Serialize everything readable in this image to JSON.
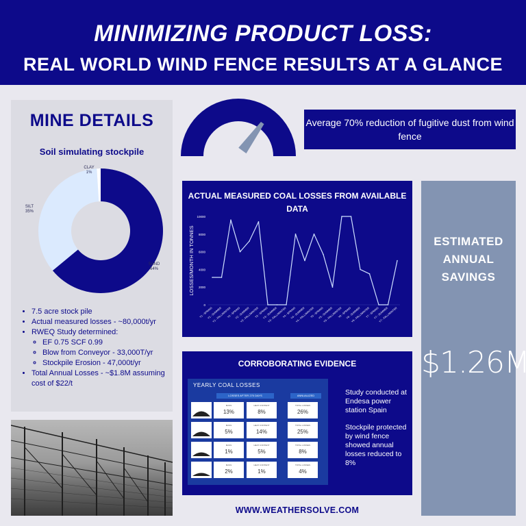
{
  "header": {
    "title_line1": "MINIMIZING PRODUCT LOSS:",
    "title_line2": "REAL WORLD WIND FENCE RESULTS AT A GLANCE"
  },
  "mine_details": {
    "title": "MINE DETAILS",
    "pie": {
      "title": "Soil simulating stockpile",
      "slices": [
        {
          "name": "SAND",
          "pct": "64%",
          "value": 64,
          "color": "#0d0a8a"
        },
        {
          "name": "SILT",
          "pct": "35%",
          "value": 35,
          "color": "#dbeafe"
        },
        {
          "name": "CLAY",
          "pct": "1%",
          "value": 1,
          "color": "#ffffff"
        }
      ]
    },
    "bullets": [
      "7.5 acre stock pile",
      "Actual measured losses - ~80,000t/yr",
      "RWEQ Study determined:"
    ],
    "sub_bullets": [
      "EF 0.75  SCF 0.99",
      "Blow from Conveyor - 33,000T/yr",
      "Stockpile Erosion - 47,000t/yr"
    ],
    "last_bullet": "Total Annual Losses - ~$1.8M assuming cost of $22/t"
  },
  "gauge": {
    "reduction_percent": 70
  },
  "reduction_text": "Average 70% reduction of fugitive dust from wind fence",
  "chart_data": {
    "type": "line",
    "title": "ACTUAL MEASURED COAL LOSSES FROM AVAILABLE DATA",
    "ylabel": "LOSSES/MONTH IN TONNES",
    "xlabel": "",
    "ylim": [
      0,
      10000
    ],
    "yticks": [
      0,
      2000,
      4000,
      6000,
      8000,
      10000
    ],
    "categories": [
      "Y1 - SPRING",
      "Y1 - SUMMER",
      "Y1 - FALL/WINTER",
      "Y2 - SPRING",
      "Y2 - SUMMER",
      "Y2 - FALL/WINTER",
      "Y3 - SPRING",
      "Y3 - SUMMER",
      "Y3 - FALL/WINTER",
      "Y4 - SPRING",
      "Y4 - SUMMER",
      "Y4 - FALL/WINTER",
      "Y5 - SPRING",
      "Y5 - SUMMER",
      "Y5 - FALL/WINTER",
      "Y6 - SPRING",
      "Y6 - SUMMER",
      "Y6 - FALL/WINTER",
      "Y7 - SPRING",
      "Y7 - SUMMER",
      "Y7 - FALL/WINTER"
    ],
    "values": [
      3100,
      3100,
      9600,
      6000,
      7200,
      9400,
      0,
      0,
      0,
      8000,
      5000,
      8000,
      5700,
      2000,
      10000,
      10000,
      4000,
      3500,
      0,
      0,
      5000
    ],
    "grid": false,
    "line_color": "#cfe0ff"
  },
  "savings": {
    "label": "ESTIMATED ANNUAL SAVINGS",
    "amount": "$1.26M"
  },
  "evidence": {
    "title": "CORROBORATING EVIDENCE",
    "table_title": "YEARLY COAL LOSSES",
    "col_group1": "LOSSES AFTER 270 DAYS",
    "col_group2": "ANNUALIZED",
    "rows": [
      {
        "mass_label": "MASS",
        "mass": "13%",
        "heat_label": "HEAT CONTENT",
        "heat": "8%",
        "total_label": "TOTAL LOSSES",
        "total": "26%"
      },
      {
        "mass_label": "MASS",
        "mass": "5%",
        "heat_label": "HEAT CONTENT",
        "heat": "14%",
        "total_label": "TOTAL LOSSES",
        "total": "25%"
      },
      {
        "mass_label": "MASS",
        "mass": "1%",
        "heat_label": "HEAT CONTENT",
        "heat": "5%",
        "total_label": "TOTAL LOSSES",
        "total": "8%"
      },
      {
        "mass_label": "MASS",
        "mass": "2%",
        "heat_label": "HEAT CONTENT",
        "heat": "1%",
        "total_label": "TOTAL LOSSES",
        "total": "4%"
      }
    ],
    "text1": "Study conducted at Endesa power station Spain",
    "text2": "Stockpile protected by wind fence showed annual losses reduced to 8%"
  },
  "footer": {
    "url": "WWW.WEATHERSOLVE.COM"
  }
}
